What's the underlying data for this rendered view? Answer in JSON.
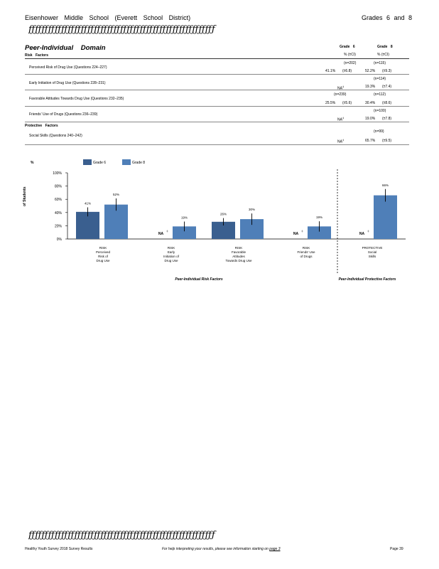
{
  "header": {
    "left": "Eisenhower    Middle  School  (Everett  School  District)",
    "right": "Grades  6  and  8",
    "separator": "ƒƒƒƒƒƒƒƒƒƒƒƒƒƒƒƒƒƒƒƒƒƒƒƒƒƒƒƒƒƒƒƒƒƒƒƒƒƒƒƒƒƒƒƒƒƒƒƒƒƒƒƒƒƒƒƒƒ"
  },
  "table": {
    "domain_title": "Peer-Individual Domain",
    "risk_label": "Risk  Factors",
    "protective_label": "Protective  Factors",
    "col_grade6": "Grade  6",
    "col_grade8": "Grade  8",
    "col_pct6": "%  (±CI)",
    "col_pct8": "%  (±CI)",
    "rows": [
      {
        "label": "Perceived   Risk  of  Drug  Use  (Questions   224–227)",
        "n6": "(n=202)",
        "n8": "(n=115)",
        "v6": "41.1%",
        "ci6": "(±6.8)",
        "v8": "52.2%",
        "ci8": "(±9.3)"
      },
      {
        "label": "Early  Initiation  of  Drug  Use  (Questions   228–231)",
        "n6": "",
        "n8": "(n=114)",
        "v6": "NA",
        "sup6": "‡",
        "ci6": "",
        "v8": "19.3%",
        "ci8": "(±7.4)"
      },
      {
        "label": "Favorable   Attitudes   Towards  Drug  Use  (Questions   232–235)",
        "n6": "(n=239)",
        "n8": "(n=112)",
        "v6": "25.5%",
        "ci6": "(±5.6)",
        "v8": "30.4%",
        "ci8": "(±8.6)"
      },
      {
        "label": "Friends'  Use  of Drugs  (Questions   236–239)",
        "n6": "",
        "n8": "(n=100)",
        "v6": "NA",
        "sup6": "‡",
        "ci6": "",
        "v8": "19.0%",
        "ci8": "(±7.8)"
      },
      {
        "label": "Social  Skills  (Questions   240–242)",
        "n6": "",
        "n8": "(n=99)",
        "v6": "NA",
        "sup6": "‡",
        "ci6": "",
        "v8": "65.7%",
        "ci8": "(±9.5)"
      }
    ]
  },
  "chart_data": {
    "type": "bar",
    "ylabel": "of Students",
    "ylabel_symbol": "%",
    "y_ticks": [
      "0%",
      "20%",
      "40%",
      "60%",
      "80%",
      "100%"
    ],
    "ylim": [
      0,
      100
    ],
    "legend_position": "top-left",
    "series": [
      {
        "name": "Grade  6",
        "color": "#3a5f8f",
        "values": [
          41,
          null,
          26,
          null,
          null
        ],
        "ci": [
          6.8,
          null,
          5.6,
          null,
          null
        ]
      },
      {
        "name": "Grade  8",
        "color": "#4f7fb8",
        "values": [
          52,
          19,
          30,
          19,
          66
        ],
        "ci": [
          9.3,
          7.4,
          8.6,
          7.8,
          9.5
        ]
      }
    ],
    "data_labels": {
      "grade6": [
        "41%",
        "NA",
        "26%",
        "NA",
        "NA"
      ],
      "grade8": [
        "52%",
        "19%",
        "30%",
        "19%",
        "66%"
      ]
    },
    "na_superscript": "‡",
    "categories": [
      [
        "RISK",
        "Perceived",
        "Risk   of",
        "Drug  Use"
      ],
      [
        "RISK",
        "Early",
        "Initiation   of",
        "Drug  Use"
      ],
      [
        "RISK",
        "Favorable",
        "Attitudes",
        "Towards   Drug  Use"
      ],
      [
        "RISK",
        "Friends'  Use",
        "of Drugs"
      ],
      [
        "PROTECTIVE",
        "Social",
        "Skills"
      ]
    ],
    "group_labels": {
      "risk": "Peer-Individual      Risk   Factors",
      "protective": "Peer-Individual      Protective     Factors"
    }
  },
  "footer": {
    "separator": "ƒƒƒƒƒƒƒƒƒƒƒƒƒƒƒƒƒƒƒƒƒƒƒƒƒƒƒƒƒƒƒƒƒƒƒƒƒƒƒƒƒƒƒƒƒƒƒƒƒƒƒƒƒƒƒƒƒ",
    "left": "Healthy   Youth  Survey  2018  Survey   Results",
    "middle": "For  help  interpreting   your  results,  please  see  information   starting  on ",
    "page_link": "page  3",
    "right": "Page   39"
  }
}
